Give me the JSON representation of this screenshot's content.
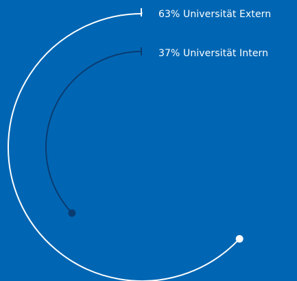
{
  "chart_data": {
    "type": "radial-bar",
    "series": [
      {
        "label": "63% Universität Extern",
        "value": 63,
        "color": "#ffffff"
      },
      {
        "label": "37% Universität Intern",
        "value": 37,
        "color": "#0a3c72"
      }
    ],
    "max": 100
  },
  "colors": {
    "background": "#0066b3",
    "label": "#ffffff"
  }
}
